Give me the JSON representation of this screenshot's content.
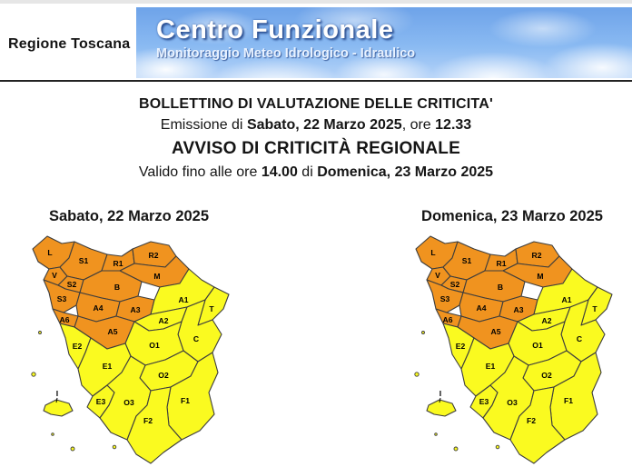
{
  "header": {
    "org": "Regione Toscana",
    "banner_title": "Centro Funzionale",
    "banner_subtitle": "Monitoraggio Meteo Idrologico - Idraulico"
  },
  "bulletin": {
    "title": "BOLLETTINO DI VALUTAZIONE DELLE CRITICITA'",
    "emission_prefix": "Emissione di ",
    "emission_date": "Sabato, 22 Marzo 2025",
    "emission_mid": ", ore ",
    "emission_time": "12.33",
    "notice_title": "AVVISO DI CRITICITÀ REGIONALE",
    "valid_prefix": "Valido fino alle ore ",
    "valid_time": "14.00",
    "valid_mid": " di ",
    "valid_date": "Domenica, 23 Marzo 2025"
  },
  "alert_colors": {
    "orange": "#F0931F",
    "yellow": "#FAFA20",
    "border": "#3D3D3D"
  },
  "maps": [
    {
      "title": "Sabato, 22 Marzo 2025",
      "zone_levels": {
        "L": "orange",
        "V": "orange",
        "S1": "orange",
        "S2": "orange",
        "S3": "orange",
        "R1": "orange",
        "R2": "orange",
        "M": "orange",
        "B": "orange",
        "A3": "orange",
        "A4": "orange",
        "A5": "orange",
        "A6": "orange",
        "A1": "yellow",
        "A2": "yellow",
        "T": "yellow",
        "C": "yellow",
        "O1": "yellow",
        "O2": "yellow",
        "O3": "yellow",
        "E1": "yellow",
        "E2": "yellow",
        "E3": "yellow",
        "F1": "yellow",
        "F2": "yellow",
        "I": "yellow"
      }
    },
    {
      "title": "Domenica, 23 Marzo 2025",
      "zone_levels": {
        "L": "orange",
        "V": "orange",
        "S1": "orange",
        "S2": "orange",
        "S3": "orange",
        "R1": "orange",
        "R2": "orange",
        "M": "orange",
        "B": "orange",
        "A3": "orange",
        "A4": "orange",
        "A5": "orange",
        "A6": "orange",
        "A1": "yellow",
        "A2": "yellow",
        "T": "yellow",
        "C": "yellow",
        "O1": "yellow",
        "O2": "yellow",
        "O3": "yellow",
        "E1": "yellow",
        "E2": "yellow",
        "E3": "yellow",
        "F1": "yellow",
        "F2": "yellow",
        "I": "yellow"
      }
    }
  ]
}
